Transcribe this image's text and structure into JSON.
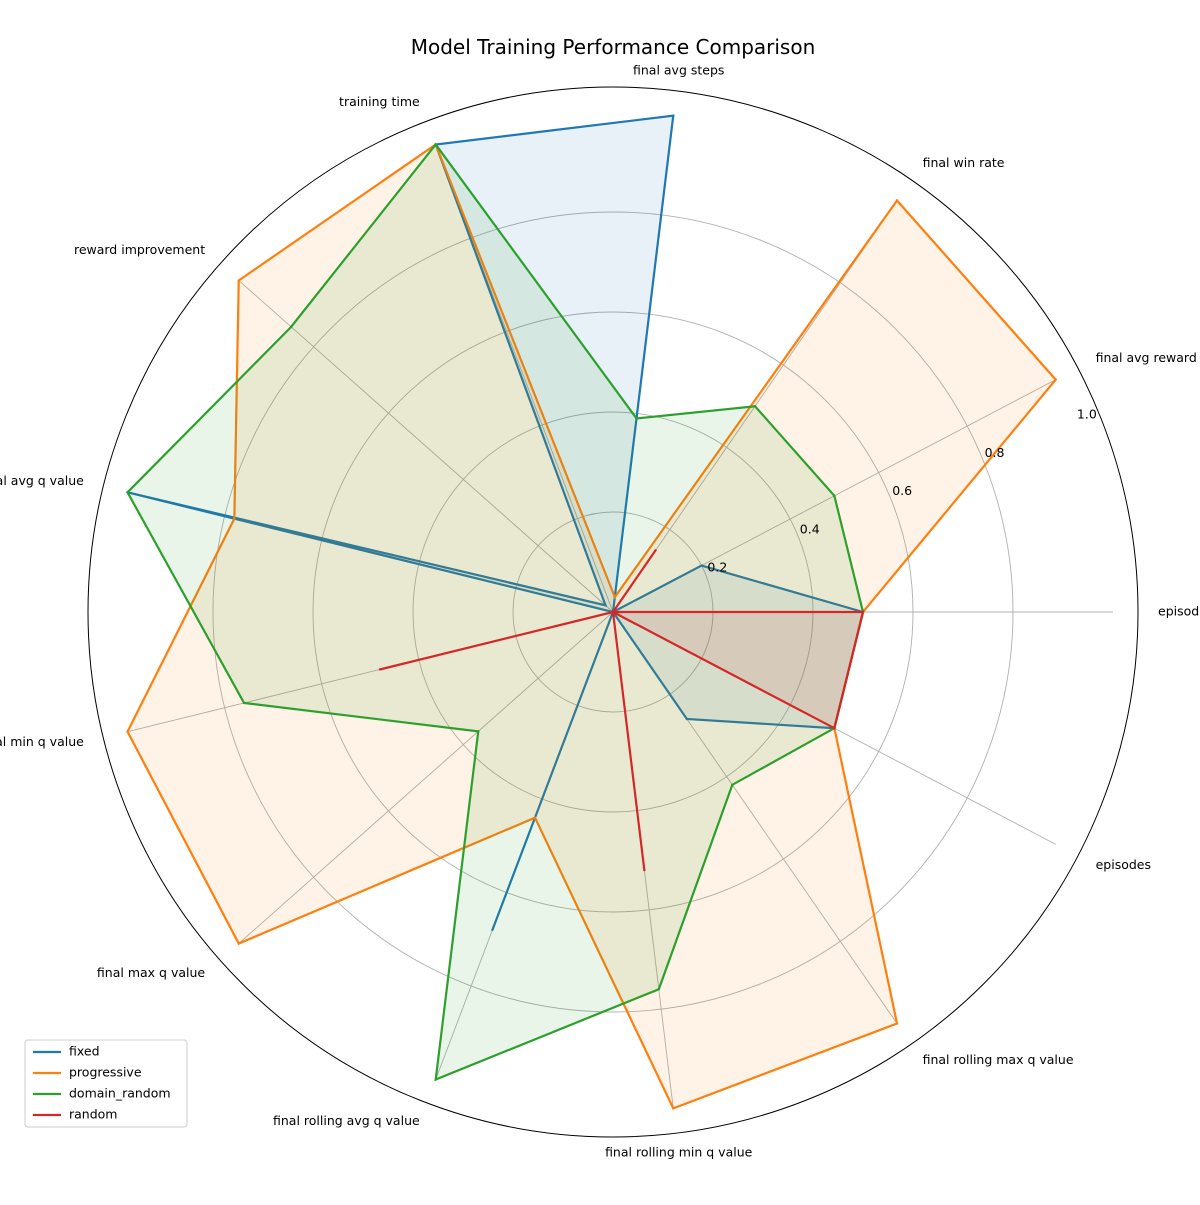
{
  "chart_data": {
    "type": "radar",
    "title": "Model Training Performance Comparison",
    "axes": [
      "episodes",
      "final avg reward",
      "final win rate",
      "final avg steps",
      "training time",
      "reward improvement",
      "final avg q value",
      "final min q value",
      "final max q value",
      "final rolling avg q value",
      "final rolling min q value",
      "final rolling max q value",
      "episodes"
    ],
    "rlim": [
      0,
      1.0
    ],
    "rticks": [
      "0.2",
      "0.4",
      "0.6",
      "0.8",
      "1.0"
    ],
    "rtick_values": [
      0.2,
      0.4,
      0.6,
      0.8,
      1.0
    ],
    "grid": true,
    "legend_position": "lower-left",
    "series": [
      {
        "name": "fixed",
        "color": "#1f77b4",
        "values": [
          0.5,
          0.2,
          0.0,
          1.0,
          1.0,
          0.02,
          1.0,
          0.0,
          0.0,
          0.68,
          0.0,
          0.26,
          0.5
        ]
      },
      {
        "name": "progressive",
        "color": "#ff7f0e",
        "values": [
          0.5,
          1.0,
          1.0,
          0.03,
          1.0,
          1.0,
          0.78,
          1.0,
          1.0,
          0.44,
          1.0,
          1.0,
          0.5
        ]
      },
      {
        "name": "domain_random",
        "color": "#2ca02c",
        "values": [
          0.5,
          0.5,
          0.5,
          0.39,
          1.0,
          0.86,
          1.0,
          0.76,
          0.36,
          1.0,
          0.76,
          0.42,
          0.5
        ]
      },
      {
        "name": "random",
        "color": "#d62728",
        "values": [
          0.5,
          0.0,
          0.15,
          0.0,
          0.0,
          0.0,
          0.0,
          0.48,
          0.0,
          0.0,
          0.52,
          0.0,
          0.5
        ]
      }
    ]
  }
}
